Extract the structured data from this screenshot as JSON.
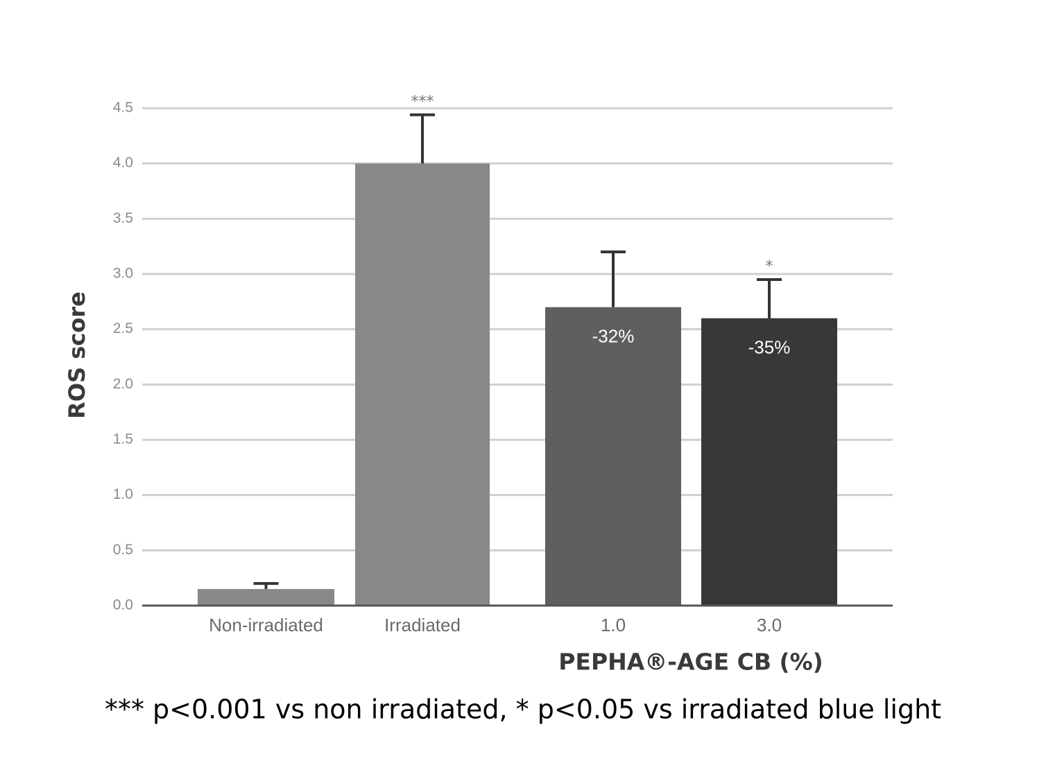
{
  "chart_data": {
    "type": "bar",
    "y_label": "ROS score",
    "x_label": "PEPHA®-AGE CB (%)",
    "footnote": "*** p<0.001 vs non irradiated, * p<0.05 vs irradiated blue light",
    "categories": [
      "Non-irradiated",
      "Irradiated",
      "1.0",
      "3.0"
    ],
    "values": [
      0.15,
      4.0,
      2.7,
      2.6
    ],
    "errors": [
      0.05,
      0.44,
      0.5,
      0.35
    ],
    "colors": [
      "#888888",
      "#888888",
      "#5f5f5f",
      "#383838"
    ],
    "significance": [
      null,
      "***",
      null,
      "*"
    ],
    "change_labels": [
      null,
      null,
      "-32%",
      "-35%"
    ],
    "ylim": [
      0,
      4.5
    ],
    "yticks": [
      {
        "value": 0,
        "label": "0.0"
      },
      0.5,
      {
        "value": 1,
        "label": "1.0"
      },
      1.5,
      {
        "value": 2,
        "label": "2.0"
      },
      2.5,
      {
        "value": 3,
        "label": "3.0"
      },
      3.5,
      {
        "value": 4,
        "label": "4.0"
      },
      4.5
    ],
    "grid": true
  }
}
